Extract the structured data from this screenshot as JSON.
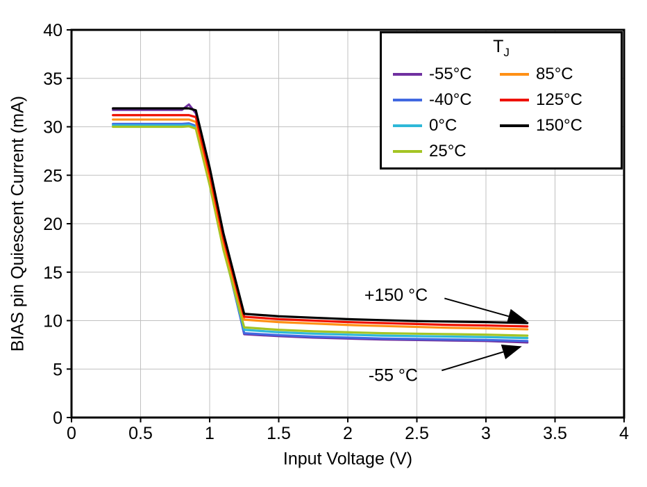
{
  "legend": {
    "title_main": "T",
    "title_sub": "J"
  },
  "chart_data": {
    "type": "line",
    "title": "",
    "xlabel": "Input Voltage (V)",
    "ylabel": "BIAS pin Quiescent Current (mA)",
    "xlim": [
      0,
      4
    ],
    "ylim": [
      0,
      40
    ],
    "xticks": [
      0,
      0.5,
      1,
      1.5,
      2,
      2.5,
      3,
      3.5,
      4
    ],
    "yticks": [
      0,
      5,
      10,
      15,
      20,
      25,
      30,
      35,
      40
    ],
    "grid": true,
    "grid_color": "#c0c0c0",
    "legend_position": "top-right",
    "x": [
      0.3,
      0.5,
      0.7,
      0.8,
      0.85,
      0.9,
      1.0,
      1.1,
      1.25,
      1.5,
      1.75,
      2.0,
      2.25,
      2.5,
      2.75,
      3.0,
      3.3
    ],
    "series": [
      {
        "name": "-55°C",
        "color": "#7030a0",
        "y": [
          31.75,
          31.75,
          31.75,
          31.75,
          32.3,
          31.4,
          25.4,
          18.2,
          8.6,
          8.4,
          8.25,
          8.15,
          8.05,
          8.0,
          7.95,
          7.9,
          7.75
        ]
      },
      {
        "name": "-40°C",
        "color": "#4169e1",
        "y": [
          30.3,
          30.3,
          30.3,
          30.3,
          30.35,
          30.1,
          24.4,
          17.6,
          8.7,
          8.5,
          8.35,
          8.25,
          8.15,
          8.1,
          8.05,
          8.0,
          7.9
        ]
      },
      {
        "name": "0°C",
        "color": "#2eb8d8",
        "y": [
          30.15,
          30.15,
          30.15,
          30.15,
          30.2,
          29.95,
          24.2,
          17.5,
          9.05,
          8.8,
          8.65,
          8.55,
          8.45,
          8.4,
          8.35,
          8.3,
          8.2
        ]
      },
      {
        "name": "25°C",
        "color": "#a4c424",
        "y": [
          30.0,
          30.0,
          30.0,
          30.0,
          30.05,
          29.8,
          24.0,
          17.3,
          9.3,
          9.05,
          8.9,
          8.8,
          8.7,
          8.65,
          8.6,
          8.55,
          8.45
        ]
      },
      {
        "name": "85°C",
        "color": "#ff9015",
        "y": [
          30.75,
          30.75,
          30.75,
          30.75,
          30.75,
          30.5,
          24.7,
          18.0,
          10.1,
          9.85,
          9.7,
          9.55,
          9.45,
          9.35,
          9.25,
          9.2,
          9.1
        ]
      },
      {
        "name": "125°C",
        "color": "#ee1100",
        "y": [
          31.2,
          31.2,
          31.2,
          31.2,
          31.2,
          31.0,
          25.2,
          18.5,
          10.4,
          10.15,
          10.0,
          9.85,
          9.75,
          9.65,
          9.55,
          9.5,
          9.4
        ]
      },
      {
        "name": "150°C",
        "color": "#000000",
        "y": [
          31.9,
          31.9,
          31.9,
          31.9,
          31.9,
          31.7,
          25.8,
          19.0,
          10.7,
          10.45,
          10.3,
          10.15,
          10.05,
          9.95,
          9.9,
          9.85,
          9.75
        ]
      }
    ],
    "annotations": [
      {
        "text": "+150 °C",
        "text_x": 2.12,
        "text_y": 12.7,
        "from_x": 2.7,
        "from_y": 12.3,
        "tip_x": 3.3,
        "tip_y": 9.9
      },
      {
        "text": "-55 °C",
        "text_x": 2.15,
        "text_y": 4.4,
        "from_x": 2.68,
        "from_y": 4.85,
        "tip_x": 3.26,
        "tip_y": 7.35
      }
    ]
  }
}
